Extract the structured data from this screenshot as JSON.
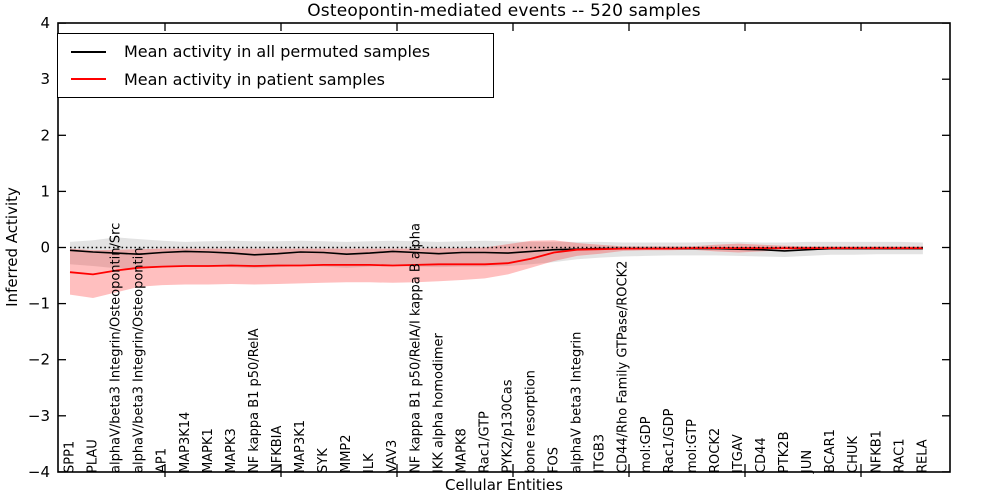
{
  "title": "Osteopontin-mediated events -- 520 samples",
  "axes": {
    "ylabel": "Inferred Activity",
    "xlabel": "Cellular Entities",
    "ylim": [
      -4,
      4
    ],
    "yticks": [
      {
        "label": "4",
        "value": 4
      },
      {
        "label": "3",
        "value": 3
      },
      {
        "label": "2",
        "value": 2
      },
      {
        "label": "1",
        "value": 1
      },
      {
        "label": "0",
        "value": 0
      },
      {
        "label": "−1",
        "value": -1
      },
      {
        "label": "−2",
        "value": -2
      },
      {
        "label": "−3",
        "value": -3
      },
      {
        "label": "−4",
        "value": -4
      }
    ]
  },
  "legend": {
    "entries": [
      {
        "label": "Mean activity in all permuted samples",
        "color": "#000000"
      },
      {
        "label": "Mean activity in patient samples",
        "color": "#ff0000"
      }
    ]
  },
  "chart_data": {
    "type": "line",
    "title": "Osteopontin-mediated events -- 520 samples",
    "xlabel": "Cellular Entities",
    "ylabel": "Inferred Activity",
    "ylim": [
      -4,
      4
    ],
    "grid": false,
    "legend_position": "upper left",
    "zero_line": {
      "value": 0,
      "style": "dotted",
      "color": "#000000"
    },
    "categories": [
      "SPP1",
      "PLAU",
      "alphaV/beta3 Integrin/Osteopontin/Src",
      "alphaV/beta3 Integrin/Osteopontin",
      "AP1",
      "MAP3K14",
      "MAPK1",
      "MAPK3",
      "NF kappa B1 p50/RelA",
      "NFKBIA",
      "MAP3K1",
      "SYK",
      "MMP2",
      "ILK",
      "VAV3",
      "NF kappa B1 p50/RelA/I kappa B alpha",
      "IKK alpha homodimer",
      "MAPK8",
      "Rac1/GTP",
      "PYK2/p130Cas",
      "bone resorption",
      "FOS",
      "alphaV beta3 Integrin",
      "ITGB3",
      "CD44/Rho Family GTPase/ROCK2",
      "mol:GDP",
      "Rac1/GDP",
      "mol:GTP",
      "ROCK2",
      "ITGAV",
      "CD44",
      "PTK2B",
      "JUN",
      "BCAR1",
      "CHUK",
      "NFKB1",
      "RAC1",
      "RELA"
    ],
    "series": [
      {
        "name": "Mean activity in all permuted samples",
        "color": "#000000",
        "band_color": "#cccccc",
        "band_opacity": 0.55,
        "values": [
          -0.05,
          -0.08,
          -0.1,
          -0.12,
          -0.09,
          -0.07,
          -0.08,
          -0.1,
          -0.13,
          -0.11,
          -0.08,
          -0.09,
          -0.12,
          -0.1,
          -0.07,
          -0.09,
          -0.11,
          -0.09,
          -0.09,
          -0.1,
          -0.07,
          -0.04,
          -0.03,
          -0.02,
          -0.02,
          -0.02,
          -0.02,
          -0.02,
          -0.02,
          -0.03,
          -0.04,
          -0.06,
          -0.04,
          -0.02,
          -0.02,
          -0.02,
          -0.02,
          -0.02
        ],
        "band_upper": [
          0.1,
          0.13,
          0.18,
          0.15,
          0.12,
          0.1,
          0.11,
          0.12,
          0.11,
          0.11,
          0.12,
          0.11,
          0.1,
          0.11,
          0.12,
          0.11,
          0.1,
          0.11,
          0.12,
          0.11,
          0.1,
          0.1,
          0.1,
          0.1,
          0.09,
          0.09,
          0.09,
          0.09,
          0.1,
          0.1,
          0.09,
          0.09,
          0.1,
          0.1,
          0.1,
          0.1,
          0.1,
          0.09
        ],
        "band_lower": [
          -0.3,
          -0.33,
          -0.37,
          -0.38,
          -0.35,
          -0.33,
          -0.34,
          -0.35,
          -0.37,
          -0.35,
          -0.33,
          -0.34,
          -0.36,
          -0.34,
          -0.33,
          -0.34,
          -0.35,
          -0.34,
          -0.34,
          -0.33,
          -0.3,
          -0.26,
          -0.21,
          -0.18,
          -0.16,
          -0.15,
          -0.14,
          -0.14,
          -0.14,
          -0.15,
          -0.16,
          -0.17,
          -0.15,
          -0.13,
          -0.13,
          -0.12,
          -0.12,
          -0.12
        ]
      },
      {
        "name": "Mean activity in patient samples",
        "color": "#ff0000",
        "band_color": "#ff0000",
        "band_opacity": 0.25,
        "values": [
          -0.44,
          -0.48,
          -0.41,
          -0.36,
          -0.34,
          -0.33,
          -0.33,
          -0.32,
          -0.33,
          -0.32,
          -0.32,
          -0.31,
          -0.31,
          -0.31,
          -0.32,
          -0.31,
          -0.3,
          -0.3,
          -0.3,
          -0.28,
          -0.2,
          -0.09,
          -0.04,
          -0.03,
          -0.02,
          -0.02,
          -0.02,
          -0.01,
          -0.01,
          -0.01,
          -0.01,
          -0.01,
          -0.01,
          -0.01,
          -0.01,
          -0.01,
          -0.01,
          -0.01
        ],
        "band_upper": [
          -0.02,
          -0.05,
          -0.04,
          -0.03,
          -0.02,
          -0.02,
          -0.02,
          -0.02,
          -0.02,
          -0.02,
          -0.02,
          -0.02,
          -0.02,
          -0.02,
          -0.02,
          -0.02,
          -0.01,
          -0.01,
          0.0,
          0.06,
          0.12,
          0.13,
          0.08,
          0.05,
          0.02,
          0.02,
          0.02,
          0.02,
          0.05,
          0.07,
          0.05,
          0.03,
          0.02,
          0.02,
          0.02,
          0.02,
          0.02,
          0.02
        ],
        "band_lower": [
          -0.84,
          -0.9,
          -0.8,
          -0.7,
          -0.67,
          -0.66,
          -0.66,
          -0.65,
          -0.66,
          -0.65,
          -0.64,
          -0.63,
          -0.62,
          -0.62,
          -0.63,
          -0.62,
          -0.6,
          -0.58,
          -0.55,
          -0.48,
          -0.36,
          -0.24,
          -0.15,
          -0.11,
          -0.06,
          -0.05,
          -0.05,
          -0.04,
          -0.07,
          -0.09,
          -0.07,
          -0.05,
          -0.04,
          -0.04,
          -0.04,
          -0.04,
          -0.04,
          -0.04
        ]
      }
    ]
  }
}
